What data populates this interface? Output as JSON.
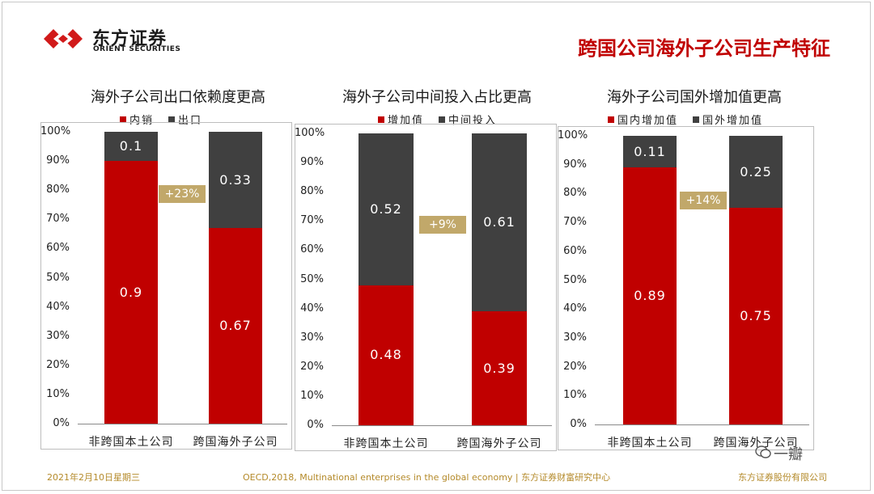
{
  "header": {
    "logo_cn": "东方证券",
    "logo_en": "ORIENT SECURITIES",
    "title": "跨国公司海外子公司生产特征"
  },
  "colors": {
    "red": "#c00000",
    "dark": "#404040",
    "badge": "#c1a86a",
    "footer": "#b48a2a"
  },
  "chart_data": [
    {
      "type": "bar",
      "stacked": true,
      "title": "海外子公司出口依赖度更高",
      "categories": [
        "非跨国本土公司",
        "跨国海外子公司"
      ],
      "series": [
        {
          "name": "内销",
          "color": "#c00000",
          "values": [
            0.9,
            0.67
          ],
          "labels": [
            "0.9",
            "0.67"
          ]
        },
        {
          "name": "出口",
          "color": "#404040",
          "values": [
            0.1,
            0.33
          ],
          "labels": [
            "0.1",
            "0.33"
          ]
        }
      ],
      "ylim": [
        0,
        1
      ],
      "yticks": [
        "0%",
        "10%",
        "20%",
        "30%",
        "40%",
        "50%",
        "60%",
        "70%",
        "80%",
        "90%",
        "100%"
      ],
      "annotation": "+23%"
    },
    {
      "type": "bar",
      "stacked": true,
      "title": "海外子公司中间投入占比更高",
      "categories": [
        "非跨国本土公司",
        "跨国海外子公司"
      ],
      "series": [
        {
          "name": "增加值",
          "color": "#c00000",
          "values": [
            0.48,
            0.39
          ],
          "labels": [
            "0.48",
            "0.39"
          ]
        },
        {
          "name": "中间投入",
          "color": "#404040",
          "values": [
            0.52,
            0.61
          ],
          "labels": [
            "0.52",
            "0.61"
          ]
        }
      ],
      "ylim": [
        0,
        1
      ],
      "yticks": [
        "0%",
        "10%",
        "20%",
        "30%",
        "40%",
        "50%",
        "60%",
        "70%",
        "80%",
        "90%",
        "100%"
      ],
      "annotation": "+9%"
    },
    {
      "type": "bar",
      "stacked": true,
      "title": "海外子公司国外增加值更高",
      "categories": [
        "非跨国本土公司",
        "跨国海外子公司"
      ],
      "series": [
        {
          "name": "国内增加值",
          "color": "#c00000",
          "values": [
            0.89,
            0.75
          ],
          "labels": [
            "0.89",
            "0.75"
          ]
        },
        {
          "name": "国外增加值",
          "color": "#404040",
          "values": [
            0.11,
            0.25
          ],
          "labels": [
            "0.11",
            "0.25"
          ]
        }
      ],
      "ylim": [
        0,
        1
      ],
      "yticks": [
        "0%",
        "10%",
        "20%",
        "30%",
        "40%",
        "50%",
        "60%",
        "70%",
        "80%",
        "90%",
        "100%"
      ],
      "annotation": "+14%"
    }
  ],
  "footer": {
    "date": "2021年2月10日星期三",
    "source": "OECD,2018, Multinational enterprises in the global economy | 东方证券财富研究中心",
    "company": "东方证券股份有限公司",
    "watermark": "一瓣"
  }
}
